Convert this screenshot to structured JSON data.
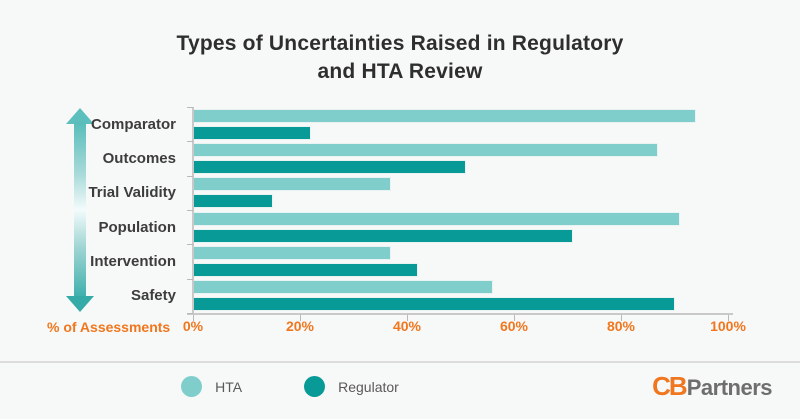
{
  "header": {
    "title_line1": "Types of Uncertainties Raised in Regulatory",
    "title_line2": "and HTA Review"
  },
  "chart_data": {
    "type": "bar",
    "orientation": "horizontal",
    "title": "Types of Uncertainties Raised in Regulatory and HTA Review",
    "categories": [
      "Comparator",
      "Outcomes",
      "Trial Validity",
      "Population",
      "Intervention",
      "Safety"
    ],
    "series": [
      {
        "name": "HTA",
        "color": "#7fcecb",
        "values": [
          94,
          87,
          37,
          91,
          37,
          56
        ]
      },
      {
        "name": "Regulator",
        "color": "#089a97",
        "values": [
          22,
          51,
          15,
          71,
          42,
          90
        ]
      }
    ],
    "xlabel": "% of Assessments",
    "x_ticks": [
      "0%",
      "20%",
      "40%",
      "60%",
      "80%",
      "100%"
    ],
    "xlim": [
      0,
      100
    ],
    "grid": false,
    "legend_position": "bottom"
  },
  "colors": {
    "hta": "#7fcecb",
    "regulator": "#089a97",
    "accent_orange": "#f0771e",
    "axis_line": "#c9c9c9",
    "divider": "#dcdcdc",
    "background": "#f7f8f8"
  },
  "icons": {
    "direction_arrow": "vertical-double-arrow"
  },
  "logo": {
    "brand_prefix": "CB",
    "brand_suffix": "Partners"
  }
}
